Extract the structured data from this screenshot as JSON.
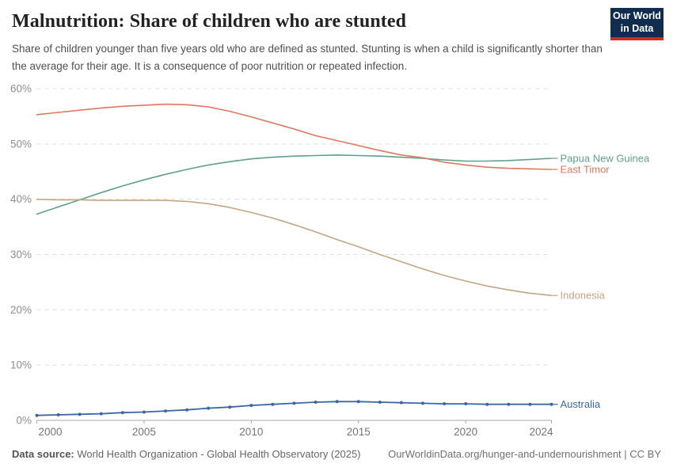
{
  "header": {
    "title": "Malnutrition: Share of children who are stunted",
    "subtitle": "Share of children younger than five years old who are defined as stunted. Stunting is when a child is significantly shorter than the average for their age. It is a consequence of poor nutrition or repeated infection.",
    "logo": {
      "line1": "Our World",
      "line2": "in Data",
      "bg_color": "#102d50",
      "accent_color": "#d42b21"
    }
  },
  "footer": {
    "datasource_label": "Data source:",
    "datasource_text": " World Health Organization - Global Health Observatory (2025)",
    "link_text": "OurWorldinData.org/hunger-and-undernourishment | CC BY"
  },
  "chart_data": {
    "type": "line",
    "title": "Malnutrition: Share of children who are stunted",
    "xlabel": "",
    "ylabel": "",
    "unit": "%",
    "ylim": [
      0,
      60
    ],
    "yticks": [
      0,
      10,
      20,
      30,
      40,
      50,
      60
    ],
    "xticks": [
      2000,
      2005,
      2010,
      2015,
      2020,
      2024
    ],
    "grid": "horizontal-dashed",
    "legend_position": "end-of-line-labels",
    "x": [
      2000,
      2001,
      2002,
      2003,
      2004,
      2005,
      2006,
      2007,
      2008,
      2009,
      2010,
      2011,
      2012,
      2013,
      2014,
      2015,
      2016,
      2017,
      2018,
      2019,
      2020,
      2021,
      2022,
      2023,
      2024
    ],
    "series": [
      {
        "name": "Papua New Guinea",
        "color": "#5fa08e",
        "markers": false,
        "values": [
          37.3,
          38.6,
          39.9,
          41.2,
          42.4,
          43.5,
          44.5,
          45.4,
          46.2,
          46.8,
          47.3,
          47.6,
          47.8,
          47.9,
          48.0,
          47.9,
          47.8,
          47.6,
          47.4,
          47.1,
          46.9,
          46.9,
          47.0,
          47.2,
          47.4
        ]
      },
      {
        "name": "East Timor",
        "color": "#dd7960",
        "markers": false,
        "values": [
          55.3,
          55.7,
          56.1,
          56.5,
          56.8,
          57.0,
          57.2,
          57.1,
          56.7,
          55.9,
          54.9,
          53.8,
          52.7,
          51.5,
          50.6,
          49.7,
          48.8,
          48.0,
          47.5,
          46.7,
          46.2,
          45.8,
          45.6,
          45.5,
          45.4
        ]
      },
      {
        "name": "Indonesia",
        "color": "#c4a582",
        "markers": false,
        "values": [
          40.0,
          39.9,
          39.9,
          39.8,
          39.8,
          39.8,
          39.8,
          39.6,
          39.2,
          38.5,
          37.6,
          36.6,
          35.4,
          34.1,
          32.7,
          31.4,
          30.0,
          28.7,
          27.4,
          26.2,
          25.2,
          24.3,
          23.6,
          23.0,
          22.6
        ]
      },
      {
        "name": "Australia",
        "color": "#3a67a5",
        "markers": true,
        "values": [
          0.9,
          1.0,
          1.1,
          1.2,
          1.4,
          1.5,
          1.7,
          1.9,
          2.2,
          2.4,
          2.7,
          2.9,
          3.1,
          3.3,
          3.4,
          3.4,
          3.3,
          3.2,
          3.1,
          3.0,
          3.0,
          2.9,
          2.9,
          2.9,
          2.9
        ]
      }
    ]
  }
}
